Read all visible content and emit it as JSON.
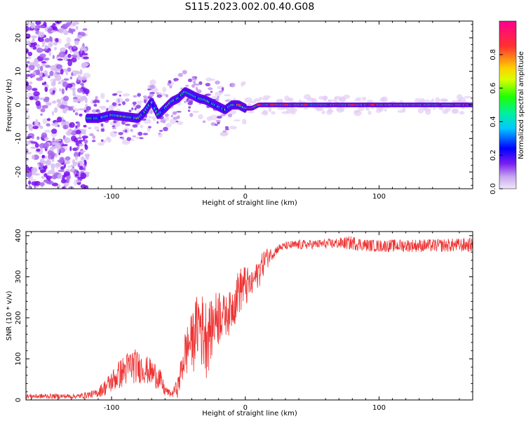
{
  "title": "S115.2023.002.00.40.G08",
  "chart_data": [
    {
      "type": "heatmap",
      "name": "spectrogram",
      "xlabel": "Height of straight line (km)",
      "ylabel": "Frequency (Hz)",
      "xlim": [
        -164,
        170
      ],
      "ylim": [
        -25,
        25
      ],
      "xticks": [
        -100,
        0,
        100
      ],
      "xtick_labels": [
        "-100",
        "0",
        "100"
      ],
      "yticks": [
        -20,
        -10,
        0,
        10,
        20
      ],
      "ytick_labels": [
        "-20",
        "-10",
        "0",
        "10",
        "20"
      ],
      "ridge": {
        "x": [
          -118,
          -110,
          -100,
          -90,
          -80,
          -75,
          -70,
          -65,
          -60,
          -55,
          -50,
          -45,
          -40,
          -35,
          -30,
          -25,
          -20,
          -15,
          -10,
          -5,
          0,
          5,
          10,
          20,
          40,
          60,
          80,
          100,
          120,
          140,
          168
        ],
        "freq": [
          -4,
          -4,
          -3,
          -3.5,
          -4,
          -2,
          1,
          -3,
          -1,
          1,
          2,
          4,
          3,
          2,
          1.5,
          0.5,
          -0.5,
          -1.5,
          0,
          0,
          -1,
          -1,
          0,
          0,
          0,
          0,
          0,
          0,
          0,
          0,
          0
        ]
      },
      "colorbar": {
        "label": "Normalized spectral amplitude",
        "range": [
          0,
          1
        ],
        "ticks": [
          0.0,
          0.2,
          0.4,
          0.6,
          0.8
        ],
        "tick_labels": [
          "0.0",
          "0.2",
          "0.4",
          "0.6",
          "0.8"
        ],
        "colormap": [
          "#e6d2f5",
          "#8c46e6",
          "#6000f5",
          "#0000ff",
          "#00c8ff",
          "#00ff40",
          "#b4ff00",
          "#ffe600",
          "#ff8c00",
          "#ff2a2a",
          "#ff0090"
        ]
      }
    },
    {
      "type": "line",
      "name": "snr",
      "color": "#ee3333",
      "xlabel": "Height of straight line (km)",
      "ylabel": "SNR (10 * v/v)",
      "xlim": [
        -164,
        170
      ],
      "ylim": [
        0,
        410
      ],
      "xticks": [
        -100,
        0,
        100
      ],
      "xtick_labels": [
        "-100",
        "0",
        "100"
      ],
      "yticks": [
        0,
        100,
        200,
        300,
        400
      ],
      "ytick_labels": [
        "0",
        "100",
        "200",
        "300",
        "400"
      ],
      "envelope": {
        "x": [
          -164,
          -140,
          -125,
          -112,
          -105,
          -95,
          -85,
          -75,
          -65,
          -60,
          -55,
          -50,
          -45,
          -40,
          -35,
          -30,
          -25,
          -20,
          -15,
          -10,
          -5,
          0,
          5,
          10,
          15,
          20,
          25,
          30,
          40,
          50,
          60,
          70,
          80,
          90,
          100,
          120,
          140,
          170
        ],
        "lo": [
          3,
          3,
          3,
          5,
          10,
          25,
          40,
          40,
          25,
          8,
          5,
          5,
          40,
          60,
          80,
          40,
          90,
          120,
          150,
          160,
          200,
          210,
          240,
          270,
          310,
          340,
          360,
          365,
          365,
          368,
          368,
          368,
          365,
          362,
          360,
          360,
          360,
          360
        ],
        "hi": [
          15,
          15,
          15,
          25,
          50,
          95,
          130,
          110,
          90,
          35,
          20,
          60,
          170,
          210,
          270,
          250,
          240,
          280,
          250,
          270,
          320,
          330,
          310,
          345,
          370,
          370,
          380,
          385,
          390,
          390,
          392,
          395,
          400,
          392,
          390,
          392,
          392,
          395
        ]
      }
    }
  ]
}
